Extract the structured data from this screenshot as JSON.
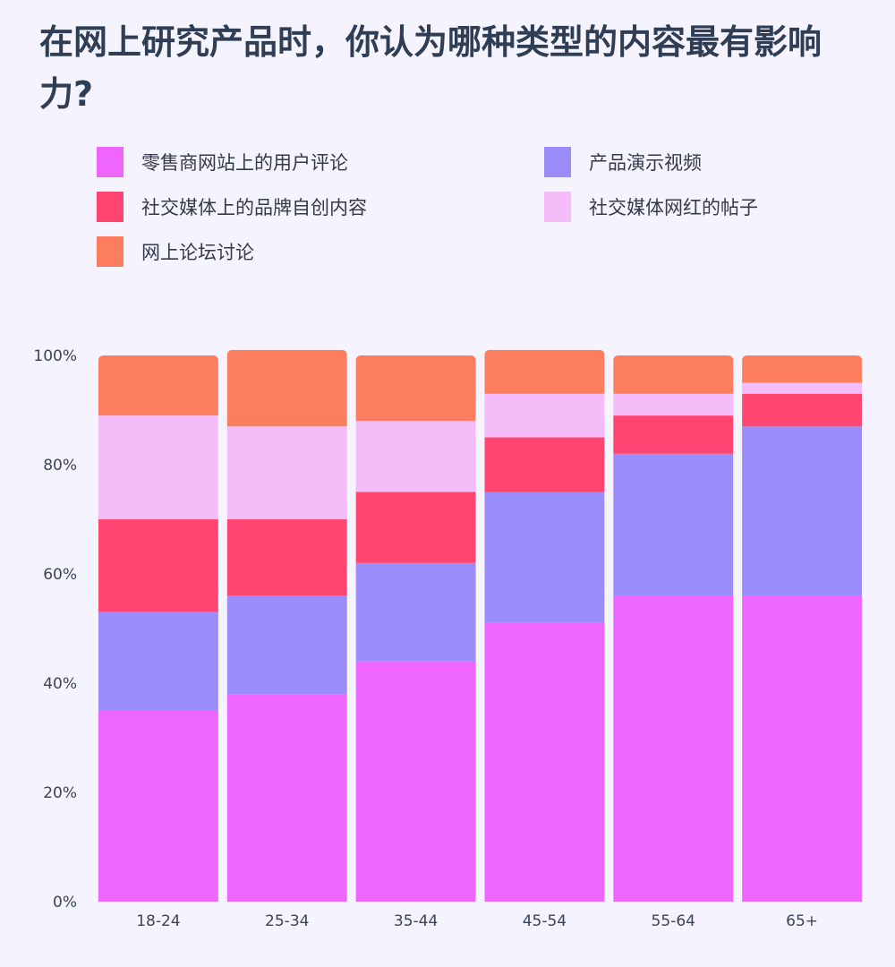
{
  "chart_data": {
    "type": "bar",
    "stacked": true,
    "title": "在网上研究产品时，你认为哪种类型的内容最有影响力?",
    "categories": [
      "18-24",
      "25-34",
      "35-44",
      "45-54",
      "55-64",
      "65+"
    ],
    "ylim": [
      0,
      100
    ],
    "yticks": [
      "0%",
      "20%",
      "40%",
      "60%",
      "80%",
      "100%"
    ],
    "legend_position": "top",
    "series": [
      {
        "name": "零售商网站上的用户评论",
        "color": "#ee66fb",
        "values": [
          35,
          38,
          44,
          51,
          56,
          56
        ]
      },
      {
        "name": "产品演示视频",
        "color": "#9a8dfa",
        "values": [
          18,
          18,
          18,
          24,
          26,
          31
        ]
      },
      {
        "name": "社交媒体上的品牌自创内容",
        "color": "#ff4570",
        "values": [
          17,
          14,
          13,
          10,
          7,
          6
        ]
      },
      {
        "name": "社交媒体网红的帖子",
        "color": "#f4bdf9",
        "values": [
          19,
          17,
          13,
          8,
          4,
          2
        ]
      },
      {
        "name": "网上论坛讨论",
        "color": "#fd7e5e",
        "values": [
          11,
          14,
          12,
          8,
          7,
          5
        ]
      }
    ]
  }
}
